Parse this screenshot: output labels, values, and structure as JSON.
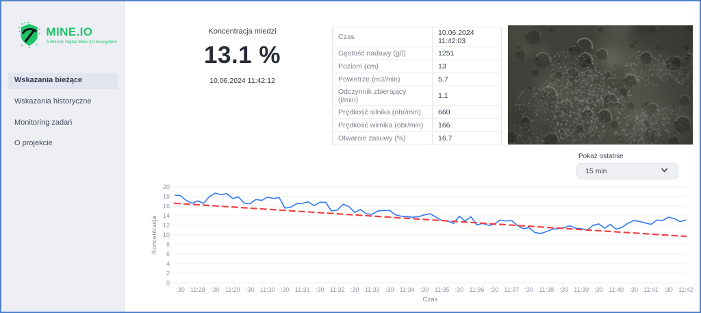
{
  "colors": {
    "accent_green": "#1fc567",
    "line_blue": "#3b7ef0",
    "trend_red": "#f43f3f",
    "frame_blue": "#4f80c6",
    "sidebar_bg": "#edeff5"
  },
  "icons": {
    "logo": "pickaxe-shield",
    "select_chevron": "chevron-down"
  },
  "sidebar": {
    "logo": {
      "title": "MINE.IO",
      "tagline": "A Holistic Digital Mine 4.0 Ecosystem"
    },
    "items": [
      {
        "label": "Wskazania bieżące",
        "active": true
      },
      {
        "label": "Wskazania historyczne",
        "active": false
      },
      {
        "label": "Monitoring zadań",
        "active": false
      },
      {
        "label": "O projekcie",
        "active": false
      }
    ]
  },
  "kpi": {
    "title": "Koncentracja miedzi",
    "value": "13.1 %",
    "timestamp": "10.06.2024 11:42:12"
  },
  "details_table": {
    "rows": [
      [
        "Czas",
        "10.06.2024 11:42:03"
      ],
      [
        "Gęstość nadawy (g/l)",
        "1251"
      ],
      [
        "Poziom (cm)",
        "13"
      ],
      [
        "Powietrze (m3/min)",
        "5.7"
      ],
      [
        "Odczynnik zbierający (l/min)",
        "1.1"
      ],
      [
        "Prędkość silnika (obr/min)",
        "660"
      ],
      [
        "Prędkość wirnika (obr/min)",
        "166"
      ],
      [
        "Otwarcie zasuwy (%)",
        "16.7"
      ]
    ]
  },
  "time_filter": {
    "label": "Pokaż ostatnie",
    "selected": "15 min"
  },
  "chart_data": {
    "type": "line",
    "xlabel": "Czas",
    "ylabel": "Koncentracja",
    "ylim": [
      0,
      20
    ],
    "y_ticks": [
      0,
      2,
      4,
      6,
      8,
      10,
      12,
      14,
      16,
      18,
      20
    ],
    "grid": "horizontal",
    "legend": "none",
    "x_start": "11:27:20",
    "x_step_seconds": 10,
    "x_tick_every_points": 3,
    "x_tick_labels": [
      ":30",
      "11:28",
      ":30",
      "11:29",
      ":30",
      "11:30",
      ":30",
      "11:31",
      ":30",
      "11:32",
      ":30",
      "11:33",
      ":30",
      "11:34",
      ":30",
      "11:35",
      ":30",
      "11:36",
      ":30",
      "11:37",
      ":30",
      "11:38",
      ":30",
      "11:39",
      ":30",
      "11:40",
      ":30",
      "11:41",
      ":30",
      "11:42"
    ],
    "series": [
      {
        "name": "Koncentracja",
        "color": "#3b7ef0",
        "style": "solid",
        "values": [
          18.3,
          18.2,
          17.2,
          16.6,
          17.1,
          16.6,
          18.0,
          18.7,
          18.4,
          18.6,
          17.6,
          17.9,
          16.6,
          16.5,
          17.4,
          17.2,
          17.9,
          17.6,
          17.8,
          15.6,
          15.8,
          16.5,
          16.6,
          16.9,
          16.1,
          16.8,
          16.8,
          15.0,
          15.2,
          16.4,
          15.9,
          14.7,
          15.3,
          14.4,
          14.3,
          15.0,
          15.1,
          15.1,
          14.2,
          13.9,
          13.8,
          13.7,
          13.8,
          14.2,
          14.4,
          13.7,
          13.0,
          12.9,
          12.4,
          13.9,
          12.9,
          13.8,
          12.1,
          12.4,
          12.0,
          12.2,
          13.1,
          12.9,
          13.0,
          12.0,
          11.3,
          11.5,
          10.5,
          10.3,
          10.7,
          11.2,
          11.3,
          11.5,
          11.9,
          11.4,
          11.3,
          11.0,
          12.0,
          12.3,
          11.4,
          12.2,
          11.2,
          11.6,
          12.4,
          13.0,
          12.8,
          12.5,
          12.2,
          13.1,
          13.0,
          13.7,
          13.4,
          12.8,
          13.1
        ]
      },
      {
        "name": "Trend",
        "color": "#f43f3f",
        "style": "dashed",
        "trend_linear": {
          "start": 16.6,
          "end": 9.7
        }
      }
    ]
  }
}
